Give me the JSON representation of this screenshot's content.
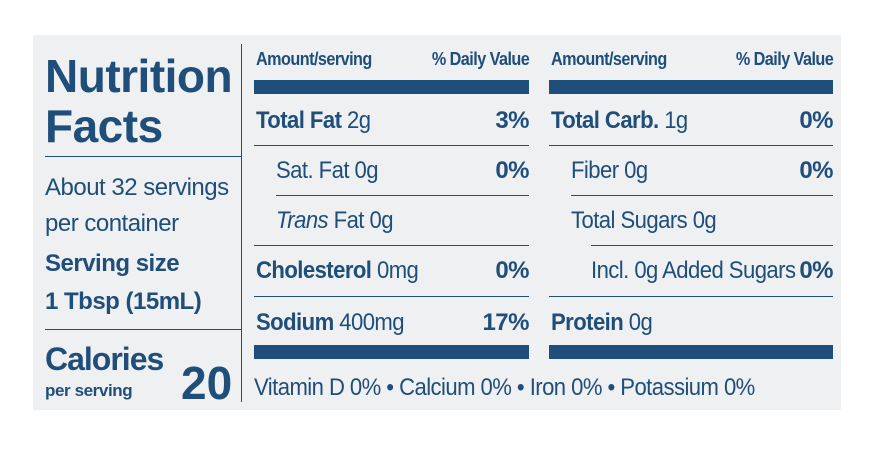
{
  "left": {
    "title_line1": "Nutrition",
    "title_line2": "Facts",
    "servings_line1": "About 32 servings",
    "servings_line2": "per container",
    "serving_size_label": "Serving size",
    "serving_size_value": "1 Tbsp (15mL)",
    "calories_label": "Calories",
    "per_serving_label": "per serving",
    "calories_value": "20"
  },
  "columns": {
    "amount_header": "Amount/serving",
    "dv_header": "% Daily Value"
  },
  "left_rows": [
    {
      "name": "Total Fat",
      "amount": " 2g",
      "dv": "3%"
    },
    {
      "name": "Sat. Fat",
      "amount": " 0g",
      "dv": "0%"
    },
    {
      "name": "Trans",
      "amount": " Fat 0g",
      "dv": ""
    },
    {
      "name": "Cholesterol",
      "amount": " 0mg",
      "dv": "0%"
    },
    {
      "name": "Sodium",
      "amount": " 400mg",
      "dv": "17%"
    }
  ],
  "right_rows": [
    {
      "name": "Total Carb.",
      "amount": " 1g",
      "dv": "0%"
    },
    {
      "name": "Fiber",
      "amount": " 0g",
      "dv": "0%"
    },
    {
      "name": "Total Sugars",
      "amount": " 0g",
      "dv": ""
    },
    {
      "name": "Incl. 0g Added Sugars",
      "amount": "",
      "dv": "0%"
    },
    {
      "name": "Protein",
      "amount": " 0g",
      "dv": ""
    }
  ],
  "vitamins": "Vitamin D 0% • Calcium 0% • Iron 0% • Potassium 0%",
  "colors": {
    "ink": "#1f4e7a",
    "background": "#eef0f1"
  }
}
